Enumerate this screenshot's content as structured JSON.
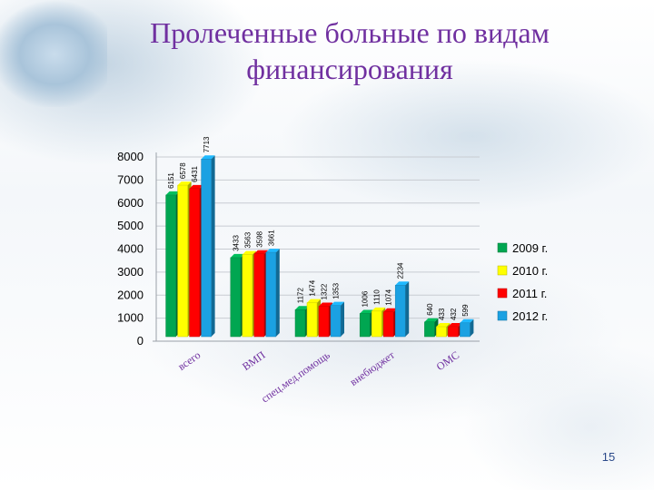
{
  "slide": {
    "title_line1": "Пролеченные больные по видам",
    "title_line2": "финансирования",
    "page_number": "15"
  },
  "chart_data": {
    "type": "bar",
    "title": "Пролеченные больные по видам финансирования",
    "categories": [
      "всего",
      "ВМП",
      "спец.мед.помощь",
      "внебюджет",
      "ОМС"
    ],
    "series": [
      {
        "name": "2009 г.",
        "color": "#00a651",
        "values": [
          6151,
          3433,
          1172,
          1006,
          640
        ]
      },
      {
        "name": "2010 г.",
        "color": "#ffff00",
        "values": [
          6578,
          3563,
          1474,
          1110,
          433
        ]
      },
      {
        "name": "2011 г.",
        "color": "#ff0000",
        "values": [
          6431,
          3598,
          1322,
          1074,
          432
        ]
      },
      {
        "name": "2012 г.",
        "color": "#1ba1e2",
        "values": [
          7713,
          3661,
          1353,
          2234,
          599
        ]
      }
    ],
    "ylim": [
      0,
      8000
    ],
    "yticks": [
      0,
      1000,
      2000,
      3000,
      4000,
      5000,
      6000,
      7000,
      8000
    ],
    "grid": true,
    "legend_position": "right"
  }
}
